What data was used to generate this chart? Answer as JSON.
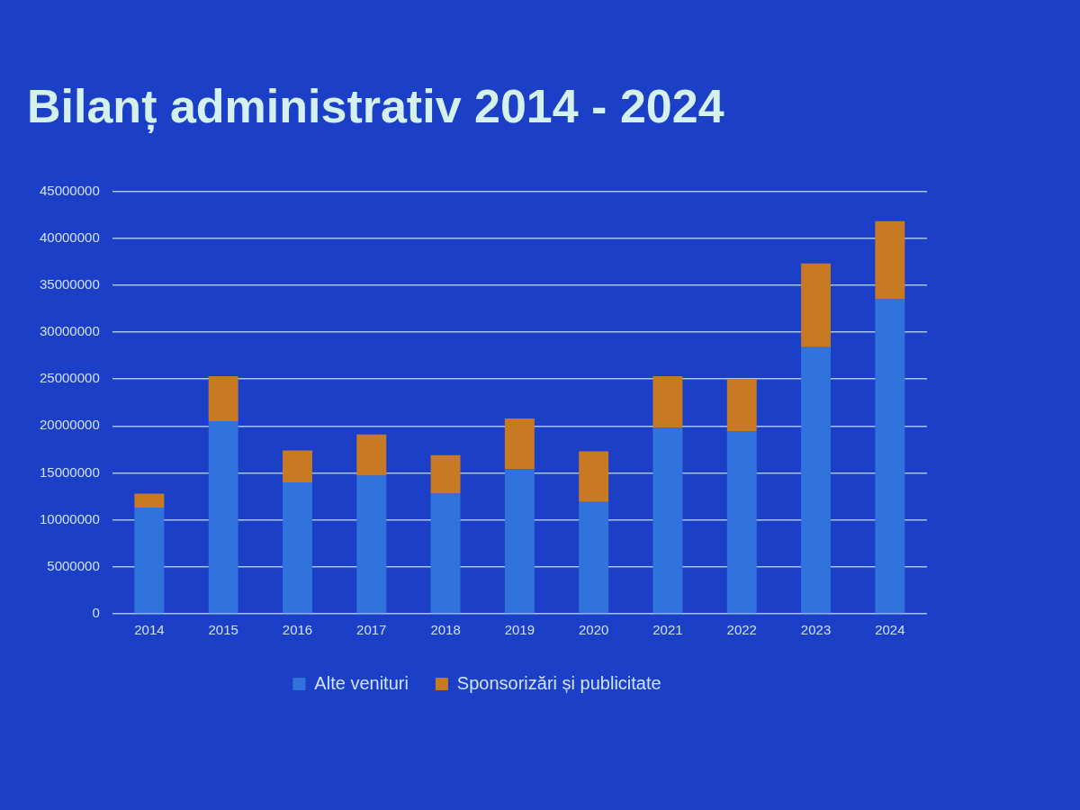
{
  "chart_data": {
    "type": "bar",
    "title": "Bilanț administrativ 2014 - 2024",
    "categories": [
      "2014",
      "2015",
      "2016",
      "2017",
      "2018",
      "2019",
      "2020",
      "2021",
      "2022",
      "2023",
      "2024"
    ],
    "series": [
      {
        "name": "Alte venituri",
        "color": "#3173dc",
        "values": [
          11300000,
          20500000,
          14000000,
          14700000,
          12800000,
          15400000,
          11900000,
          19800000,
          19400000,
          28400000,
          33500000
        ]
      },
      {
        "name": "Sponsorizări și publicitate",
        "color": "#c77a22",
        "values": [
          1500000,
          4800000,
          3400000,
          4400000,
          4100000,
          5400000,
          5400000,
          5500000,
          5600000,
          8900000,
          8300000
        ]
      }
    ],
    "stacked": true,
    "ylim": [
      0,
      45000000
    ],
    "yticks": [
      0,
      5000000,
      10000000,
      15000000,
      20000000,
      25000000,
      30000000,
      35000000,
      40000000,
      45000000
    ],
    "grid": "y",
    "legend": "bottom"
  }
}
